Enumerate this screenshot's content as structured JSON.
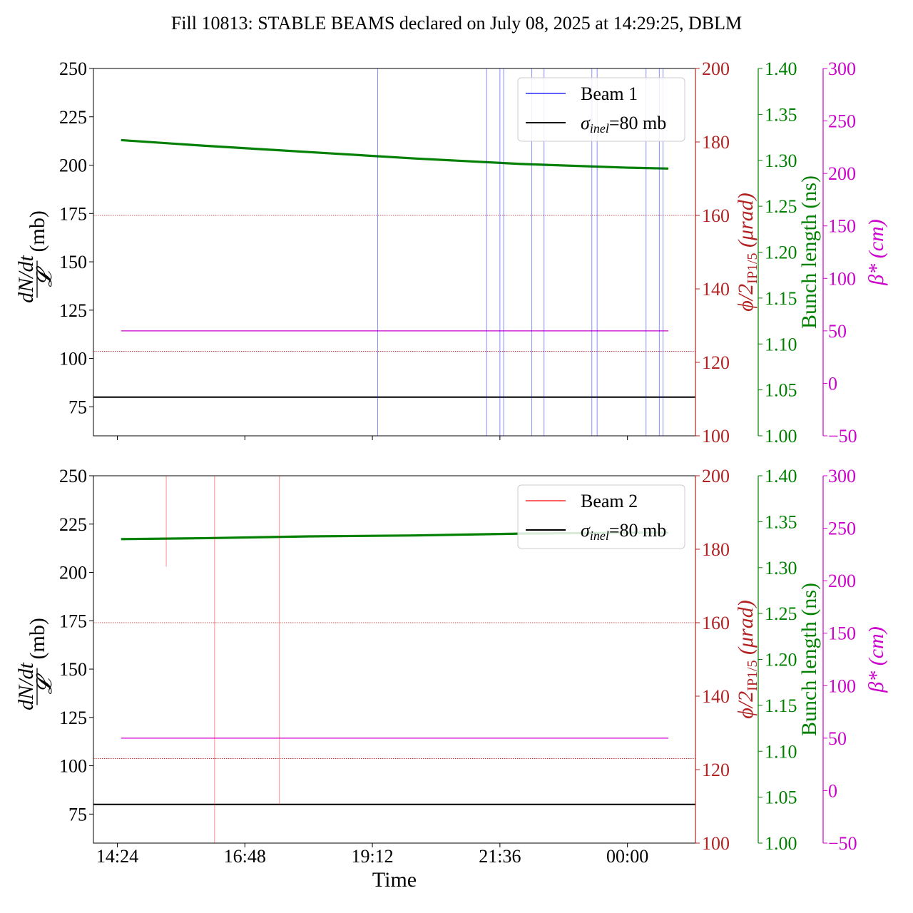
{
  "title": "Fill 10813: STABLE BEAMS declared on July 08, 2025 at 14:29:25, DBLM",
  "xlabel": "Time",
  "colors": {
    "left_axis": "#000000",
    "phi_axis": "#b22222",
    "bunch_axis": "#008000",
    "beta_axis": "#cc00cc",
    "beam1": "#0000ff",
    "beam2": "#ff0000",
    "sigma_line": "#000000",
    "bunch_series": "#008000",
    "beta_series": "#cc00cc"
  },
  "chart_data": [
    {
      "type": "line",
      "panel": "top",
      "x_ticks": [
        "14:24",
        "16:48",
        "19:12",
        "21:36",
        "00:00"
      ],
      "x_ticks_hours": [
        14.4,
        16.8,
        19.2,
        21.6,
        24.0
      ],
      "x_range_hours": [
        13.95,
        25.28
      ],
      "axes": {
        "left": {
          "label": "dN/dt / 𝓛 (mb)",
          "label_main": "(mb)",
          "ylim": [
            60,
            250
          ],
          "ticks": [
            75,
            100,
            125,
            150,
            175,
            200,
            225,
            250
          ]
        },
        "phi": {
          "label_prefix": "ϕ/2",
          "label_sub": "IP1/5",
          "label_suffix": "(μrad)",
          "ylim": [
            100,
            200
          ],
          "ticks": [
            100,
            120,
            140,
            160,
            180,
            200
          ]
        },
        "bunch": {
          "label": "Bunch length (ns)",
          "ylim": [
            1.0,
            1.4
          ],
          "ticks": [
            "1.00",
            "1.05",
            "1.10",
            "1.15",
            "1.20",
            "1.25",
            "1.30",
            "1.35",
            "1.40"
          ]
        },
        "beta": {
          "label": "β* (cm)",
          "ylim": [
            -50,
            300
          ],
          "ticks": [
            "−50",
            "0",
            "50",
            "100",
            "150",
            "200",
            "250",
            "300"
          ]
        }
      },
      "legend": {
        "placement": "top-right",
        "entries": [
          "Beam 1",
          "σinel=80 mb"
        ]
      },
      "series": [
        {
          "name": "Beam 1",
          "kind": "vertical-spikes",
          "color_key": "beam1",
          "x_hours": [
            19.3,
            21.35,
            21.6,
            21.67,
            22.2,
            22.43,
            23.33,
            23.43,
            24.35,
            24.6,
            24.67
          ]
        },
        {
          "name": "σinel=80 mb",
          "kind": "hline",
          "axis": "left",
          "value": 80
        },
        {
          "name": "Bunch length",
          "kind": "line",
          "axis": "bunch",
          "x_hours": [
            14.47,
            16.0,
            18.0,
            20.0,
            22.0,
            24.0,
            24.77
          ],
          "values": [
            1.322,
            1.316,
            1.309,
            1.302,
            1.296,
            1.292,
            1.291
          ]
        },
        {
          "name": "β*",
          "kind": "line",
          "axis": "beta",
          "x_hours": [
            14.47,
            24.77
          ],
          "values": [
            50,
            50
          ]
        },
        {
          "name": "phi-ref-upper",
          "kind": "dotted-hline",
          "axis": "phi",
          "value": 160
        },
        {
          "name": "phi-ref-lower",
          "kind": "dotted-hline",
          "axis": "phi",
          "value": 123
        }
      ]
    },
    {
      "type": "line",
      "panel": "bottom",
      "x_ticks": [
        "14:24",
        "16:48",
        "19:12",
        "21:36",
        "00:00"
      ],
      "x_ticks_hours": [
        14.4,
        16.8,
        19.2,
        21.6,
        24.0
      ],
      "x_range_hours": [
        13.95,
        25.28
      ],
      "axes": {
        "left": {
          "label": "dN/dt / 𝓛 (mb)",
          "label_main": "(mb)",
          "ylim": [
            60,
            250
          ],
          "ticks": [
            75,
            100,
            125,
            150,
            175,
            200,
            225,
            250
          ]
        },
        "phi": {
          "label_prefix": "ϕ/2",
          "label_sub": "IP1/5",
          "label_suffix": "(μrad)",
          "ylim": [
            100,
            200
          ],
          "ticks": [
            100,
            120,
            140,
            160,
            180,
            200
          ]
        },
        "bunch": {
          "label": "Bunch length (ns)",
          "ylim": [
            1.0,
            1.4
          ],
          "ticks": [
            "1.00",
            "1.05",
            "1.10",
            "1.15",
            "1.20",
            "1.25",
            "1.30",
            "1.35",
            "1.40"
          ]
        },
        "beta": {
          "label": "β* (cm)",
          "ylim": [
            -50,
            300
          ],
          "ticks": [
            "−50",
            "0",
            "50",
            "100",
            "150",
            "200",
            "250",
            "300"
          ]
        }
      },
      "legend": {
        "placement": "top-right",
        "entries": [
          "Beam 2",
          "σinel=80 mb"
        ]
      },
      "series": [
        {
          "name": "Beam 2",
          "kind": "vertical-segments",
          "color_key": "beam2",
          "segments": [
            {
              "x": 15.32,
              "from": 203,
              "to": 250
            },
            {
              "x": 16.23,
              "from": 60,
              "to": 250
            },
            {
              "x": 17.45,
              "from": 80,
              "to": 250
            }
          ]
        },
        {
          "name": "σinel=80 mb",
          "kind": "hline",
          "axis": "left",
          "value": 80
        },
        {
          "name": "Bunch length",
          "kind": "line",
          "axis": "bunch",
          "x_hours": [
            14.47,
            16.0,
            18.0,
            20.0,
            22.0,
            24.0,
            24.77
          ],
          "values": [
            1.331,
            1.332,
            1.334,
            1.335,
            1.337,
            1.338,
            1.338
          ]
        },
        {
          "name": "β*",
          "kind": "line",
          "axis": "beta",
          "x_hours": [
            14.47,
            24.77
          ],
          "values": [
            50,
            50
          ]
        },
        {
          "name": "phi-ref-upper",
          "kind": "dotted-hline",
          "axis": "phi",
          "value": 160
        },
        {
          "name": "phi-ref-lower",
          "kind": "dotted-hline",
          "axis": "phi",
          "value": 123
        }
      ]
    }
  ]
}
